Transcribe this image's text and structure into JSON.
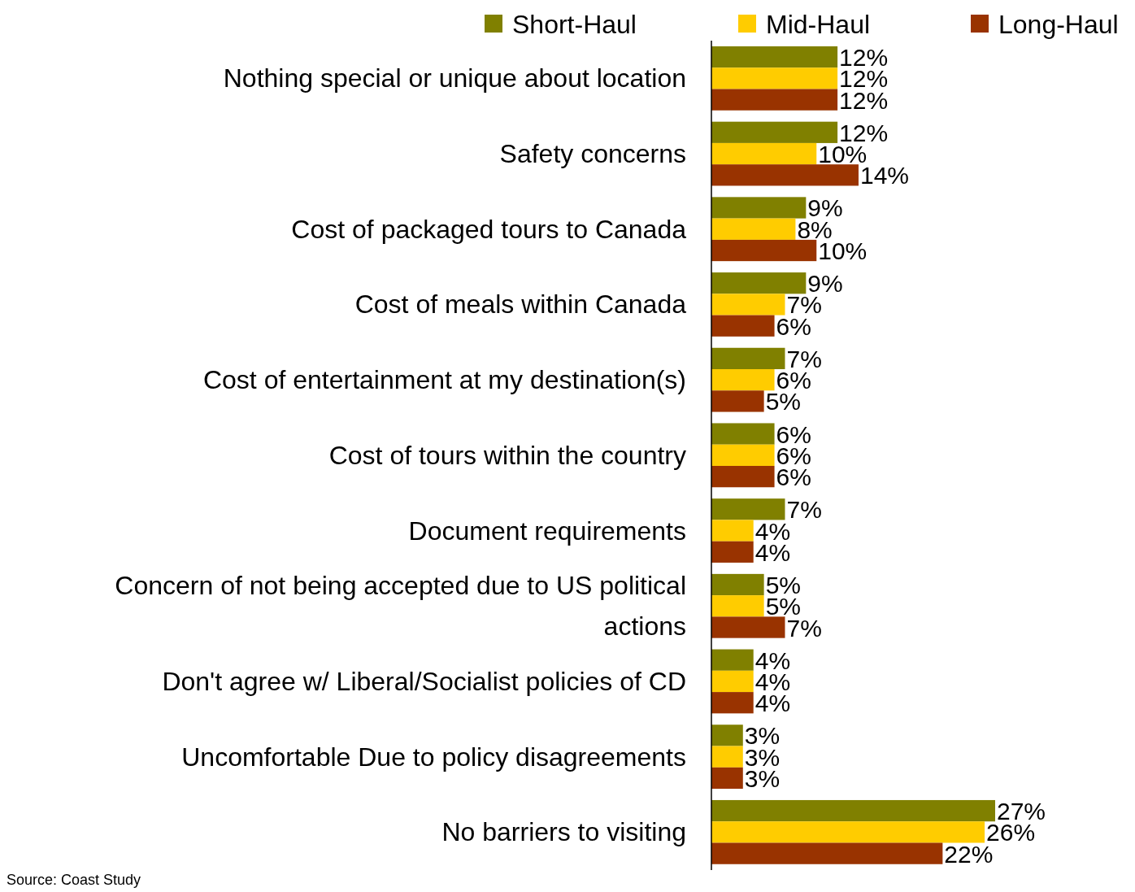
{
  "chart_data": {
    "type": "bar",
    "orientation": "horizontal",
    "categories": [
      "Nothing special or unique about location",
      "Safety concerns",
      "Cost of packaged tours to Canada",
      "Cost of meals within Canada",
      "Cost of entertainment at my destination(s)",
      "Cost of tours within the country",
      "Document requirements",
      "Concern of not being accepted due to US political actions",
      "Don't agree w/ Liberal/Socialist policies of CD",
      "Uncomfortable Due to policy disagreements",
      "No barriers to visiting"
    ],
    "series": [
      {
        "name": "Short-Haul",
        "color": "#808000",
        "values": [
          12,
          12,
          9,
          9,
          7,
          6,
          7,
          5,
          4,
          3,
          27
        ],
        "value_labels": [
          "12%",
          "12%",
          "9%",
          "9%",
          "7%",
          "6%",
          "7%",
          "5%",
          "4%",
          "3%",
          "27%"
        ]
      },
      {
        "name": "Mid-Haul",
        "color": "#ffcc00",
        "values": [
          12,
          10,
          8,
          7,
          6,
          6,
          4,
          5,
          4,
          3,
          26
        ],
        "value_labels": [
          "12%",
          "10%",
          "8%",
          "7%",
          "6%",
          "6%",
          "4%",
          "5%",
          "4%",
          "3%",
          "26%"
        ]
      },
      {
        "name": "Long-Haul",
        "color": "#993300",
        "values": [
          12,
          14,
          10,
          6,
          5,
          6,
          4,
          7,
          4,
          3,
          22
        ],
        "value_labels": [
          "12%",
          "14%",
          "10%",
          "6%",
          "5%",
          "6%",
          "4%",
          "7%",
          "4%",
          "3%",
          "22%"
        ]
      }
    ],
    "tick_labels": "y",
    "legend": "top",
    "annotations": [
      "Source: Coast Study"
    ]
  }
}
